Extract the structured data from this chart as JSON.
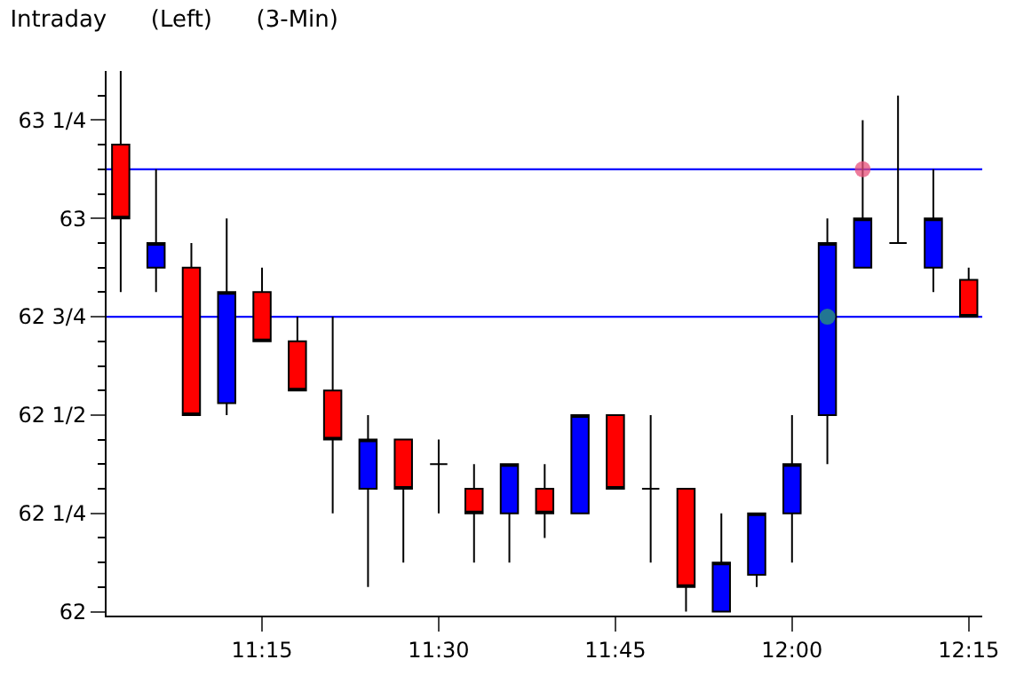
{
  "chart_data": {
    "type": "candlestick",
    "title": "Intraday      (Left)      (3-Min)",
    "x": [
      11.05,
      11.1,
      11.15,
      11.2,
      11.25,
      11.3,
      11.35,
      11.4,
      11.45,
      11.5,
      11.55,
      11.6,
      11.65,
      11.7,
      11.75,
      11.8,
      11.85,
      11.9,
      11.95,
      12.0,
      12.05,
      12.1,
      12.15,
      12.2,
      12.25
    ],
    "ohlc": [
      [
        63.1875,
        63.375,
        62.8125,
        63.0
      ],
      [
        62.875,
        63.125,
        62.8125,
        62.9375
      ],
      [
        62.875,
        62.9375,
        62.5,
        62.5
      ],
      [
        62.53,
        63.0,
        62.5,
        62.8125
      ],
      [
        62.8125,
        62.875,
        62.6875,
        62.6875
      ],
      [
        62.6875,
        62.75,
        62.5625,
        62.5625
      ],
      [
        62.5625,
        62.75,
        62.25,
        62.4375
      ],
      [
        62.3125,
        62.5,
        62.0625,
        62.4375
      ],
      [
        62.4375,
        62.4375,
        62.125,
        62.3125
      ],
      [
        62.375,
        62.4375,
        62.25,
        62.375
      ],
      [
        62.3125,
        62.375,
        62.125,
        62.25
      ],
      [
        62.25,
        62.375,
        62.125,
        62.375
      ],
      [
        62.3125,
        62.375,
        62.1875,
        62.25
      ],
      [
        62.25,
        62.5,
        62.25,
        62.5
      ],
      [
        62.5,
        62.5,
        62.3125,
        62.3125
      ],
      [
        62.3125,
        62.5,
        62.125,
        62.3125
      ],
      [
        62.3125,
        62.3125,
        62.0,
        62.0625
      ],
      [
        62.0,
        62.25,
        62.0,
        62.125
      ],
      [
        62.09375,
        62.25,
        62.0625,
        62.25
      ],
      [
        62.25,
        62.5,
        62.125,
        62.375
      ],
      [
        62.5,
        63.0,
        62.375,
        62.9375
      ],
      [
        62.875,
        63.25,
        62.875,
        63.0
      ],
      [
        62.9375,
        63.3125,
        62.9375,
        62.9375
      ],
      [
        62.875,
        63.125,
        62.8125,
        63.0
      ],
      [
        62.84375,
        62.875,
        62.75,
        62.75
      ]
    ],
    "colors": [
      "#ff0000",
      "#0000ff",
      "#ff0000",
      "#0000ff",
      "#ff0000",
      "#ff0000",
      "#ff0000",
      "#0000ff",
      "#ff0000",
      "#000000",
      "#ff0000",
      "#0000ff",
      "#ff0000",
      "#0000ff",
      "#ff0000",
      "#000000",
      "#ff0000",
      "#0000ff",
      "#0000ff",
      "#0000ff",
      "#0000ff",
      "#0000ff",
      "#000000",
      "#0000ff",
      "#ff0000"
    ],
    "series": [
      {
        "type": "scatter",
        "x": [
          12.05
        ],
        "values": [
          62.75
        ],
        "color": "#2e9e6e"
      },
      {
        "type": "scatter",
        "x": [
          12.1
        ],
        "values": [
          63.125
        ],
        "color": "#e8507a"
      }
    ],
    "ref_lines": [
      {
        "axis": "y",
        "value": 63.125,
        "color": "#0000ff"
      },
      {
        "axis": "y",
        "value": 62.75,
        "color": "#0000ff"
      }
    ],
    "xlim": [
      11.03,
      12.2692
    ],
    "xticks": [
      {
        "value": 11.25,
        "label": "11:15"
      },
      {
        "value": 11.5,
        "label": "11:30"
      },
      {
        "value": 11.75,
        "label": "11:45"
      },
      {
        "value": 12.0,
        "label": "12:00"
      },
      {
        "value": 12.25,
        "label": "12:15"
      }
    ],
    "ylim": [
      61.99,
      63.375
    ],
    "yticks": [
      62,
      {
        "value": 62.0625,
        "label": null
      },
      {
        "value": 62.125,
        "label": null
      },
      {
        "value": 62.1875,
        "label": null
      },
      {
        "value": 62.25,
        "label": "62 1/4"
      },
      {
        "value": 62.3125,
        "label": null
      },
      {
        "value": 62.375,
        "label": null
      },
      {
        "value": 62.4375,
        "label": null
      },
      {
        "value": 62.5,
        "label": "62 1/2"
      },
      {
        "value": 62.5625,
        "label": null
      },
      {
        "value": 62.625,
        "label": null
      },
      {
        "value": 62.6875,
        "label": null
      },
      {
        "value": 62.75,
        "label": "62 3/4"
      },
      {
        "value": 62.8125,
        "label": null
      },
      {
        "value": 62.875,
        "label": null
      },
      {
        "value": 62.9375,
        "label": null
      },
      63,
      {
        "value": 63.0625,
        "label": null
      },
      {
        "value": 63.125,
        "label": null
      },
      {
        "value": 63.1875,
        "label": null
      },
      {
        "value": 63.25,
        "label": "63 1/4"
      },
      {
        "value": 63.3125,
        "label": null
      }
    ],
    "grid": false
  }
}
